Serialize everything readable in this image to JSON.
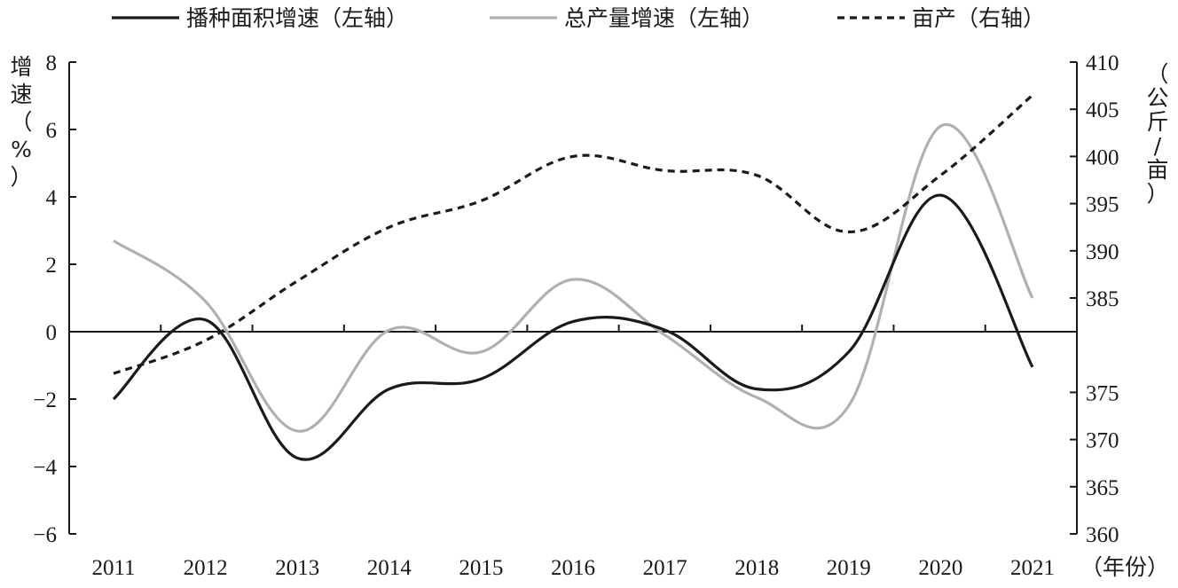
{
  "chart_data": {
    "type": "line",
    "title": "",
    "x": [
      "2011",
      "2012",
      "2013",
      "2014",
      "2015",
      "2016",
      "2017",
      "2018",
      "2019",
      "2020",
      "2021"
    ],
    "xlabel": "（年份）",
    "ylabel_left": "增速（%）",
    "ylabel_right": "（公斤/亩）",
    "ylim_left": [
      -6,
      8
    ],
    "ylim_right": [
      360,
      410
    ],
    "yticks_left": [
      "8",
      "6",
      "4",
      "2",
      "0",
      "−2",
      "−4",
      "−6"
    ],
    "yticks_right": [
      "410",
      "405",
      "400",
      "395",
      "390",
      "385",
      "375",
      "370",
      "365",
      "360"
    ],
    "yticks_right_values": [
      410,
      405,
      400,
      395,
      390,
      385,
      375,
      370,
      365,
      360
    ],
    "legend_position": "top",
    "series": [
      {
        "name": "播种面积增速（左轴）",
        "axis": "left",
        "style": "solid",
        "color": "#1a1a1a",
        "values": [
          -2.0,
          0.35,
          -3.75,
          -1.7,
          -1.4,
          0.3,
          0.05,
          -1.7,
          -0.6,
          4.05,
          -1.05
        ]
      },
      {
        "name": "总产量增速（左轴）",
        "axis": "left",
        "style": "solid",
        "color": "#b0b0b0",
        "values": [
          2.7,
          0.9,
          -2.95,
          0.05,
          -0.6,
          1.55,
          -0.1,
          -1.95,
          -2.2,
          6.1,
          1.0
        ]
      },
      {
        "name": "亩产（右轴）",
        "axis": "right",
        "style": "dashed",
        "color": "#1a1a1a",
        "values": [
          377,
          380.5,
          386.8,
          392.5,
          395.3,
          400,
          398.5,
          398,
          392,
          398,
          406.5
        ]
      }
    ]
  }
}
